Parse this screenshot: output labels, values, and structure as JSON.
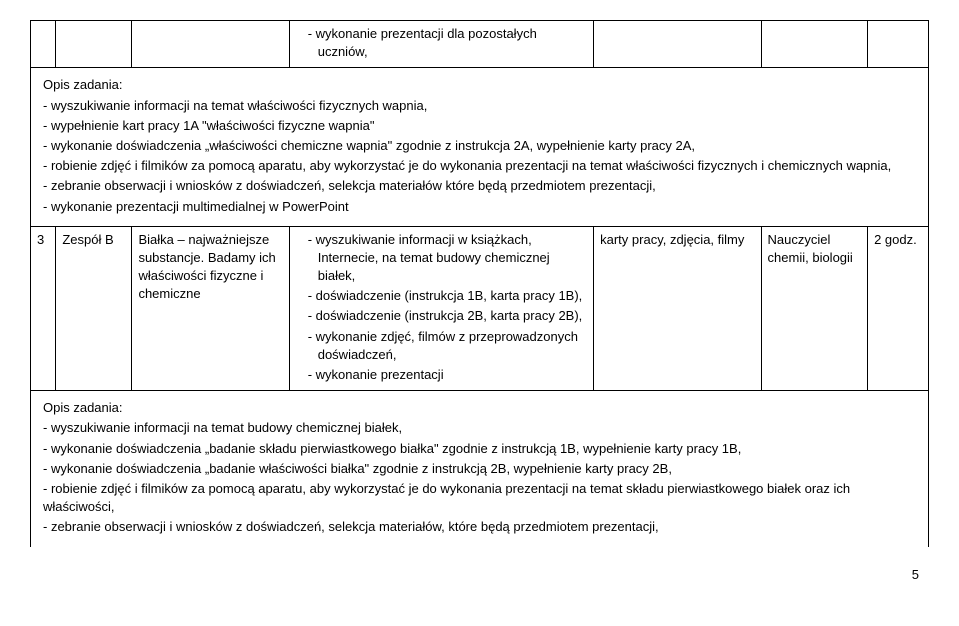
{
  "topRow": {
    "col4_items": [
      "wykonanie prezentacji dla pozostałych uczniów,"
    ]
  },
  "opis1": {
    "title": "Opis zadania:",
    "lines": [
      "- wyszukiwanie informacji na temat właściwości fizycznych  wapnia,",
      "-  wypełnienie kart pracy 1A \"właściwości fizyczne wapnia\"",
      "- wykonanie doświadczenia „właściwości chemiczne wapnia\" zgodnie z instrukcja 2A, wypełnienie karty pracy 2A,",
      "- robienie zdjęć i filmików za pomocą aparatu, aby wykorzystać je do wykonania prezentacji na temat właściwości fizycznych i chemicznych wapnia,",
      "- zebranie obserwacji i wniosków z doświadczeń, selekcja materiałów które będą przedmiotem prezentacji,",
      "- wykonanie prezentacji multimedialnej w PowerPoint"
    ]
  },
  "row3": {
    "num": "3",
    "team": "Zespół B",
    "topic": "Białka – najważniejsze substancje. Badamy ich właściwości fizyczne i chemiczne",
    "tasks": [
      "wyszukiwanie informacji w książkach, Internecie, na temat budowy chemicznej białek,",
      "doświadczenie (instrukcja 1B, karta pracy 1B),",
      "doświadczenie (instrukcja 2B, karta pracy 2B),",
      "wykonanie zdjęć, filmów z przeprowadzonych doświadczeń,",
      "wykonanie prezentacji"
    ],
    "materials": "karty pracy, zdjęcia, filmy",
    "teacher": "Nauczyciel chemii, biologii",
    "hours": "2 godz."
  },
  "opis2": {
    "title": "Opis zadania:",
    "lines": [
      "- wyszukiwanie informacji na temat budowy chemicznej białek,",
      "- wykonanie doświadczenia „badanie składu pierwiastkowego białka\" zgodnie z instrukcją 1B, wypełnienie karty pracy 1B,",
      "- wykonanie doświadczenia „badanie właściwości białka\" zgodnie z instrukcją 2B, wypełnienie karty pracy 2B,",
      "- robienie zdjęć i filmików za pomocą aparatu, aby wykorzystać je do wykonania prezentacji na temat składu pierwiastkowego białek oraz ich właściwości,",
      "- zebranie obserwacji i wniosków z doświadczeń,  selekcja materiałów,  które będą  przedmiotem prezentacji,"
    ]
  },
  "pageNum": "5"
}
